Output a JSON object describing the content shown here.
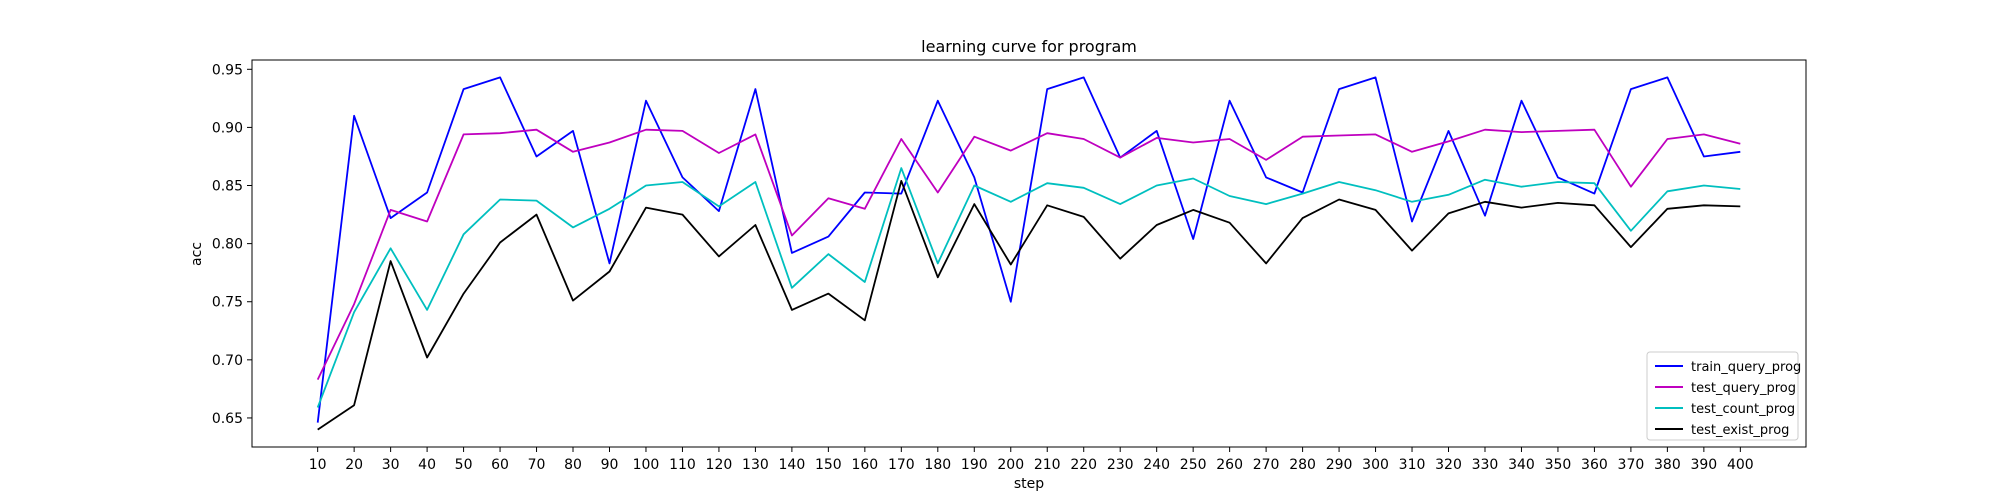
{
  "chart_data": {
    "type": "line",
    "title": "learning curve for program",
    "xlabel": "step",
    "ylabel": "acc",
    "x": [
      10,
      20,
      30,
      40,
      50,
      60,
      70,
      80,
      90,
      100,
      110,
      120,
      130,
      140,
      150,
      160,
      170,
      180,
      190,
      200,
      210,
      220,
      230,
      240,
      250,
      260,
      270,
      280,
      290,
      300,
      310,
      320,
      330,
      340,
      350,
      360,
      370,
      380,
      390,
      400
    ],
    "xlim": [
      -8,
      418
    ],
    "ylim": [
      0.625,
      0.958
    ],
    "xticks": [
      "10",
      "20",
      "30",
      "40",
      "50",
      "60",
      "70",
      "80",
      "90",
      "100",
      "110",
      "120",
      "130",
      "140",
      "150",
      "160",
      "170",
      "180",
      "190",
      "200",
      "210",
      "220",
      "230",
      "240",
      "250",
      "260",
      "270",
      "280",
      "290",
      "300",
      "310",
      "320",
      "330",
      "340",
      "350",
      "360",
      "370",
      "380",
      "390",
      "400"
    ],
    "yticks": [
      "0.65",
      "0.70",
      "0.75",
      "0.80",
      "0.85",
      "0.90",
      "0.95"
    ],
    "ytick_values": [
      0.65,
      0.7,
      0.75,
      0.8,
      0.85,
      0.9,
      0.95
    ],
    "grid": false,
    "legend_position": "lower-right",
    "series": [
      {
        "name": "train_query_prog",
        "color": "#0000ff",
        "values": [
          0.646,
          0.91,
          0.822,
          0.844,
          0.933,
          0.943,
          0.875,
          0.897,
          0.783,
          0.923,
          0.857,
          0.828,
          0.933,
          0.792,
          0.806,
          0.844,
          0.843,
          0.923,
          0.857,
          0.75,
          0.933,
          0.943,
          0.874,
          0.897,
          0.804,
          0.923,
          0.857,
          0.844,
          0.933,
          0.943,
          0.819,
          0.897,
          0.824,
          0.923,
          0.857,
          0.843,
          0.933,
          0.943,
          0.875,
          0.879
        ]
      },
      {
        "name": "test_query_prog",
        "color": "#bf00bf",
        "values": [
          0.683,
          0.748,
          0.829,
          0.819,
          0.894,
          0.895,
          0.898,
          0.879,
          0.887,
          0.898,
          0.897,
          0.878,
          0.894,
          0.807,
          0.839,
          0.83,
          0.89,
          0.844,
          0.892,
          0.88,
          0.895,
          0.89,
          0.874,
          0.891,
          0.887,
          0.89,
          0.872,
          0.892,
          0.893,
          0.894,
          0.879,
          0.888,
          0.898,
          0.896,
          0.897,
          0.898,
          0.849,
          0.89,
          0.894,
          0.886
        ]
      },
      {
        "name": "test_count_prog",
        "color": "#00bfbf",
        "values": [
          0.659,
          0.741,
          0.796,
          0.743,
          0.808,
          0.838,
          0.837,
          0.814,
          0.83,
          0.85,
          0.853,
          0.832,
          0.853,
          0.762,
          0.791,
          0.767,
          0.865,
          0.783,
          0.85,
          0.836,
          0.852,
          0.848,
          0.834,
          0.85,
          0.856,
          0.841,
          0.834,
          0.843,
          0.853,
          0.846,
          0.836,
          0.842,
          0.855,
          0.849,
          0.853,
          0.852,
          0.811,
          0.845,
          0.85,
          0.847
        ]
      },
      {
        "name": "test_exist_prog",
        "color": "#000000",
        "values": [
          0.64,
          0.661,
          0.785,
          0.702,
          0.757,
          0.801,
          0.825,
          0.751,
          0.776,
          0.831,
          0.825,
          0.789,
          0.816,
          0.743,
          0.757,
          0.734,
          0.854,
          0.771,
          0.834,
          0.782,
          0.833,
          0.823,
          0.787,
          0.816,
          0.829,
          0.818,
          0.783,
          0.822,
          0.838,
          0.829,
          0.794,
          0.826,
          0.836,
          0.831,
          0.835,
          0.833,
          0.797,
          0.83,
          0.833,
          0.832
        ]
      }
    ]
  }
}
